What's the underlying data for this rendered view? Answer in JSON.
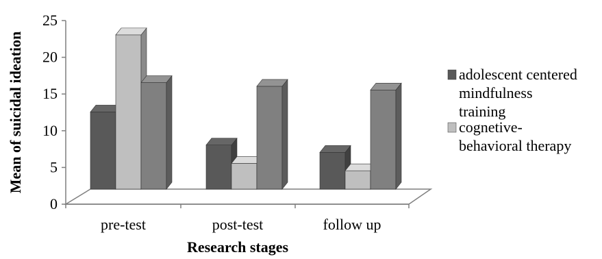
{
  "chart_data": {
    "type": "bar",
    "categories": [
      "pre-test",
      "post-test",
      "follow up"
    ],
    "series": [
      {
        "name": "adolescent centered mindfulness training",
        "values": [
          10.5,
          6,
          5
        ],
        "color": "#595959"
      },
      {
        "name": "cognetive-behavioral therapy",
        "values": [
          21,
          3.5,
          2.5
        ],
        "color": "#bfbfbf"
      },
      {
        "name": "",
        "values": [
          14.5,
          14,
          13.5
        ],
        "color": "#808080"
      }
    ],
    "xlabel": "Research stages",
    "ylabel": "Mean of suicidal ideation",
    "ylim": [
      0,
      25
    ],
    "yticks": [
      0,
      5,
      10,
      15,
      20,
      25
    ],
    "grid": false,
    "legend": {
      "position": "right",
      "entries": [
        {
          "lines": [
            "adolescent centered",
            "mindfulness",
            "training"
          ]
        },
        {
          "lines": [
            "cognetive-",
            "behavioral therapy"
          ]
        }
      ]
    }
  }
}
